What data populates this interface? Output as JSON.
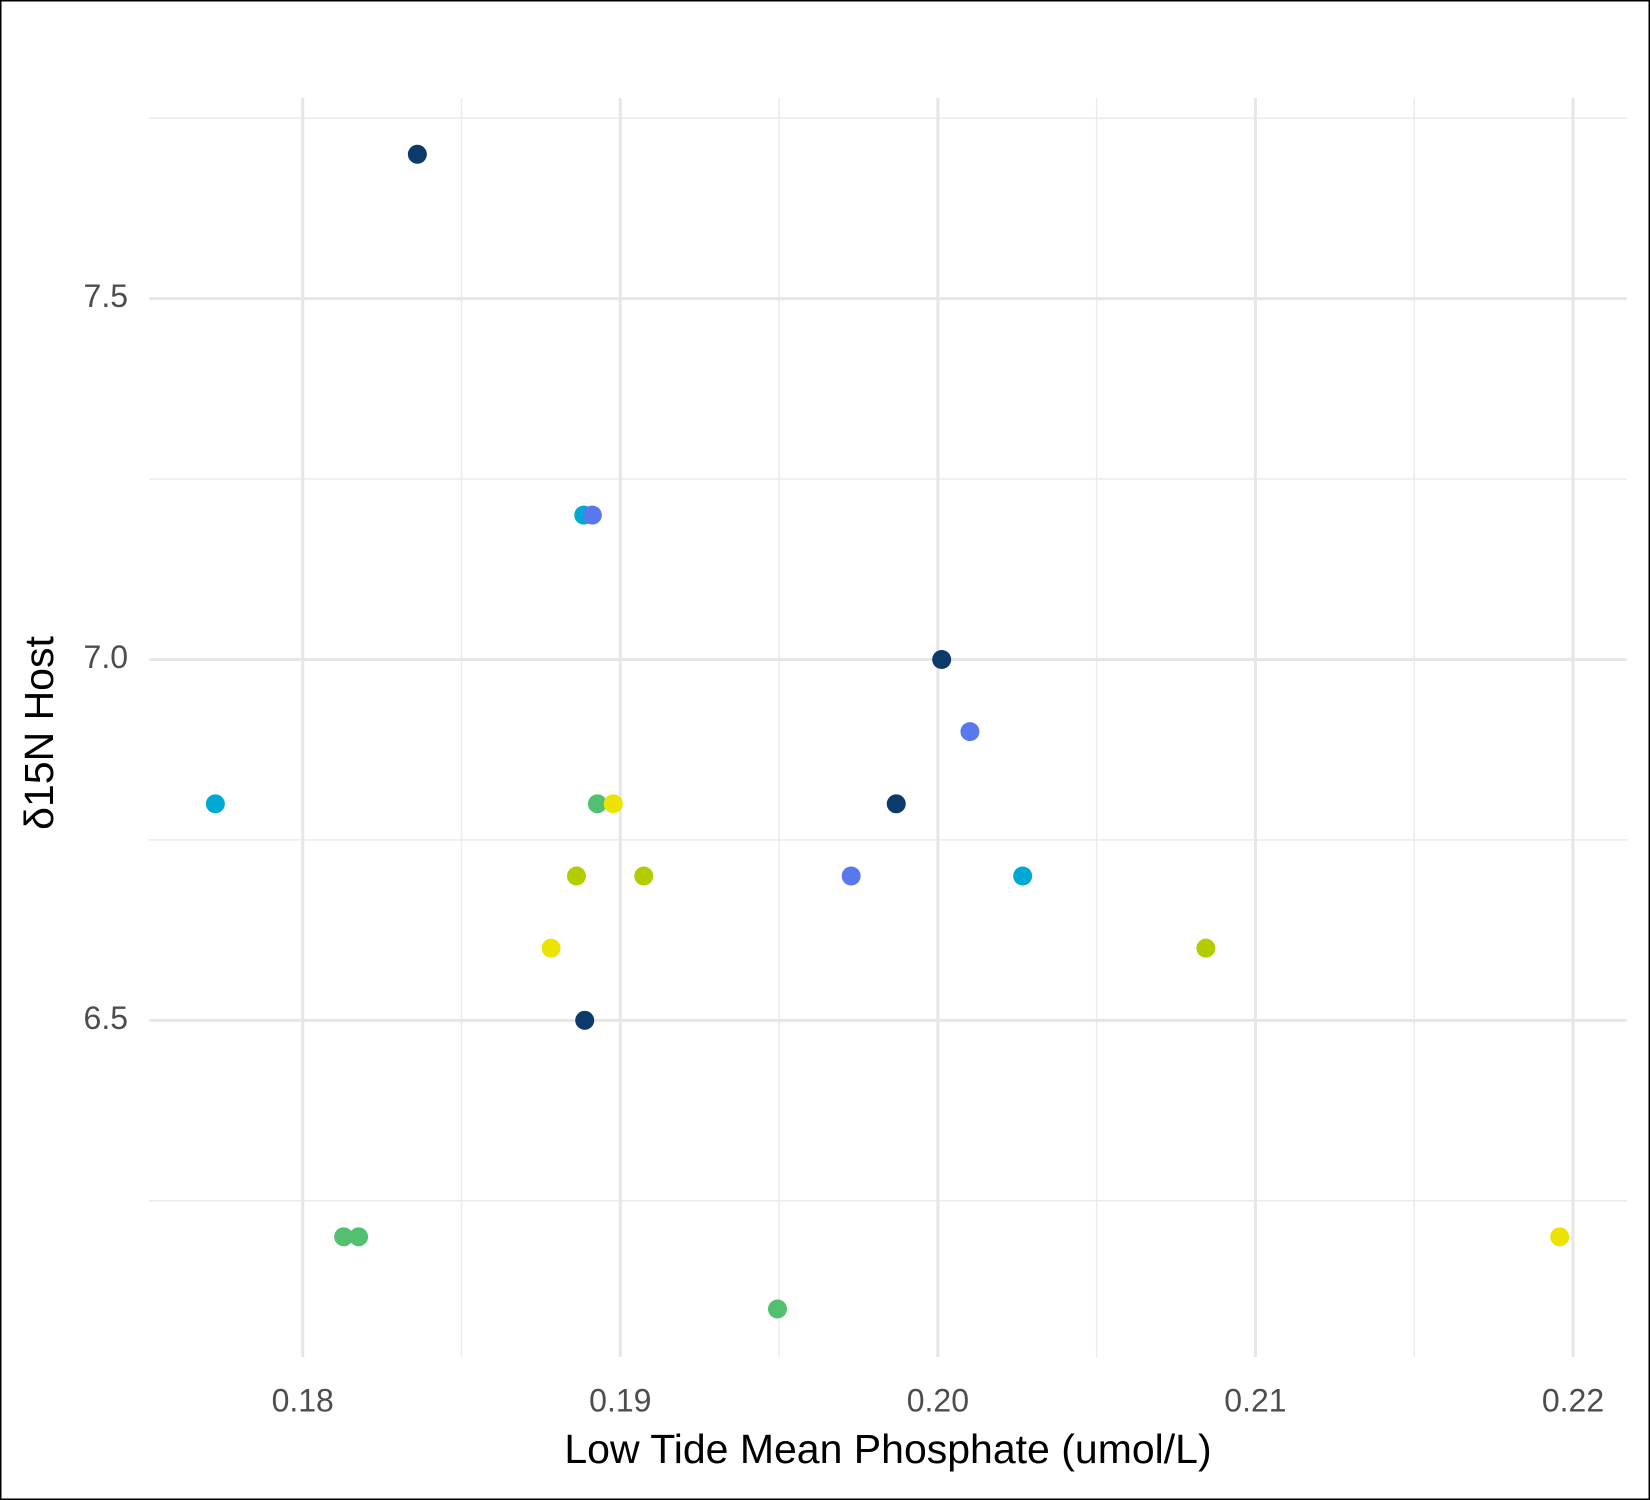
{
  "chart_data": {
    "type": "scatter",
    "x_label": "Low Tide Mean Phosphate (umol/L)",
    "y_label": "δ15N Host",
    "x": [
      0.18361,
      0.18885,
      0.18912,
      0.20012,
      0.20101,
      0.17725,
      0.18928,
      0.18978,
      0.19869,
      0.18862,
      0.19074,
      0.19727,
      0.20267,
      0.18782,
      0.20844,
      0.18888,
      0.18129,
      0.18176,
      0.19495,
      0.21958
    ],
    "values": [
      7.7,
      7.2,
      7.2,
      7.0,
      6.9,
      6.8,
      6.8,
      6.8,
      6.8,
      6.7,
      6.7,
      6.7,
      6.7,
      6.6,
      6.6,
      6.5,
      6.2,
      6.2,
      6.1,
      6.2
    ],
    "colors": [
      "#0b3a6b",
      "#00a9d4",
      "#5a78ee",
      "#0b3a6b",
      "#5a78ee",
      "#00a9d4",
      "#52c070",
      "#ece300",
      "#0b3a6b",
      "#b3cc00",
      "#b3cc00",
      "#5a78ee",
      "#00a9d4",
      "#ece300",
      "#b3cc00",
      "#0b3a6b",
      "#52c070",
      "#52c070",
      "#52c070",
      "#ece300"
    ],
    "xlim": [
      0.17516,
      0.2217
    ],
    "ylim": [
      6.0335,
      7.778
    ],
    "xticks": [
      0.18,
      0.19,
      {
        "value": 0.2,
        "label": "0.20"
      },
      0.21,
      0.22
    ],
    "yticks": [
      6.5,
      {
        "value": 7.0,
        "label": "7.0"
      },
      7.5
    ],
    "xminor": [
      0.185,
      0.195,
      0.205,
      0.215
    ],
    "yminor": [
      6.25,
      6.75,
      7.25,
      7.75
    ],
    "grid": true
  }
}
